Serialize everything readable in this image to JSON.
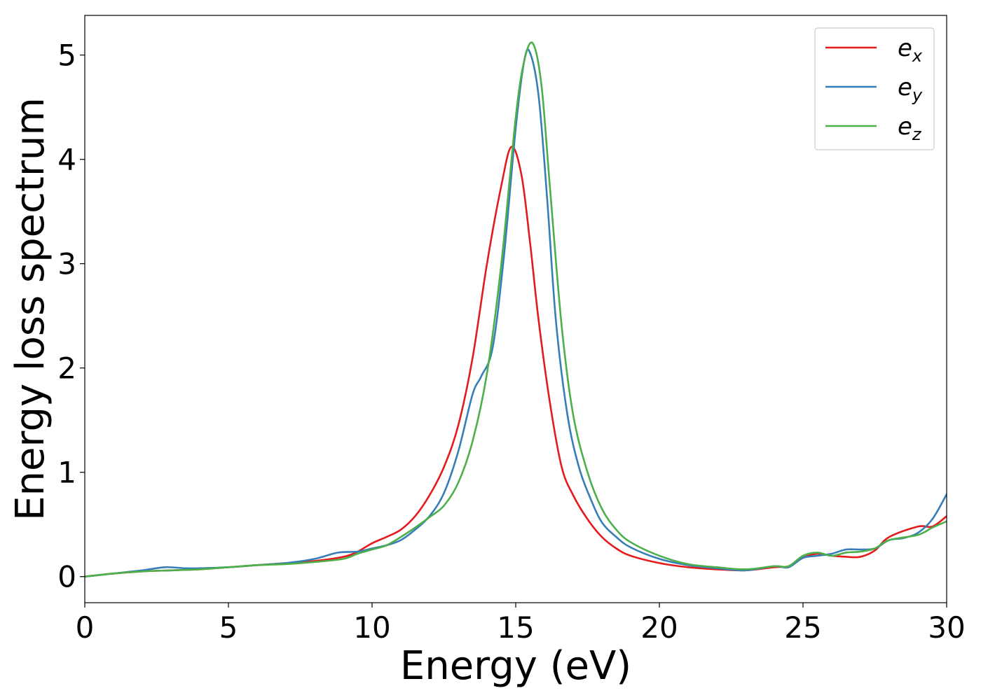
{
  "chart_data": {
    "type": "line",
    "title": "",
    "xlabel": "Energy (eV)",
    "ylabel": "Energy loss spectrum",
    "xlim": [
      0,
      30
    ],
    "ylim": [
      -0.25,
      5.38
    ],
    "xticks": [
      0,
      5,
      10,
      15,
      20,
      25,
      30
    ],
    "yticks": [
      0,
      1,
      2,
      3,
      4,
      5
    ],
    "xtick_labels": [
      "0",
      "5",
      "10",
      "15",
      "20",
      "25",
      "30"
    ],
    "ytick_labels": [
      "0",
      "1",
      "2",
      "3",
      "4",
      "5"
    ],
    "grid": false,
    "legend_position": "top-right",
    "series": [
      {
        "name": "e_x",
        "label_base": "e",
        "label_sub": "x",
        "color": "#e41a1c",
        "x": [
          0,
          1,
          2,
          3,
          4,
          5,
          6,
          7,
          8,
          9,
          9.5,
          10,
          10.5,
          11,
          11.5,
          12,
          12.5,
          13,
          13.5,
          14,
          14.5,
          14.85,
          15.2,
          15.5,
          15.8,
          16.2,
          16.6,
          17,
          17.5,
          18,
          18.5,
          19,
          20,
          21,
          22,
          23,
          24,
          24.5,
          25,
          25.5,
          26,
          26.5,
          27,
          27.5,
          28,
          29,
          29.5,
          30
        ],
        "y": [
          0,
          0.03,
          0.05,
          0.06,
          0.07,
          0.09,
          0.11,
          0.13,
          0.15,
          0.19,
          0.24,
          0.32,
          0.38,
          0.45,
          0.58,
          0.78,
          1.05,
          1.45,
          2.1,
          3.0,
          3.75,
          4.12,
          3.85,
          3.2,
          2.45,
          1.65,
          1.05,
          0.78,
          0.55,
          0.38,
          0.27,
          0.2,
          0.13,
          0.09,
          0.07,
          0.06,
          0.09,
          0.1,
          0.18,
          0.22,
          0.2,
          0.19,
          0.19,
          0.25,
          0.38,
          0.48,
          0.48,
          0.58
        ]
      },
      {
        "name": "e_y",
        "label_base": "e",
        "label_sub": "y",
        "color": "#377eb8",
        "x": [
          0,
          1,
          2,
          2.8,
          3.5,
          4,
          5,
          6,
          7,
          8,
          8.8,
          9.5,
          10,
          10.5,
          11,
          11.5,
          12,
          12.5,
          13,
          13.5,
          13.8,
          14.2,
          14.6,
          15,
          15.3,
          15.5,
          15.8,
          16.1,
          16.4,
          16.8,
          17.2,
          17.6,
          18,
          18.5,
          19,
          20,
          21,
          22,
          23,
          24,
          24.5,
          25,
          25.5,
          26,
          26.5,
          27,
          27.5,
          28,
          28.5,
          29,
          29.5,
          30
        ],
        "y": [
          0,
          0.03,
          0.06,
          0.09,
          0.08,
          0.08,
          0.09,
          0.11,
          0.13,
          0.17,
          0.23,
          0.24,
          0.27,
          0.3,
          0.35,
          0.45,
          0.58,
          0.8,
          1.2,
          1.75,
          1.92,
          2.2,
          3.1,
          4.3,
          4.95,
          5.02,
          4.6,
          3.6,
          2.45,
          1.55,
          1.05,
          0.75,
          0.52,
          0.38,
          0.28,
          0.17,
          0.11,
          0.08,
          0.06,
          0.1,
          0.09,
          0.18,
          0.2,
          0.22,
          0.26,
          0.26,
          0.27,
          0.35,
          0.37,
          0.42,
          0.55,
          0.79
        ]
      },
      {
        "name": "e_z",
        "label_base": "e",
        "label_sub": "z",
        "color": "#4daf4a",
        "x": [
          0,
          1,
          2,
          3,
          4,
          5,
          6,
          7,
          8,
          9,
          9.5,
          10,
          10.5,
          11,
          11.5,
          12,
          12.5,
          13,
          13.5,
          14,
          14.5,
          15,
          15.3,
          15.6,
          15.9,
          16.2,
          16.6,
          17,
          17.5,
          18,
          18.5,
          19,
          20,
          21,
          22,
          23,
          24,
          24.5,
          25,
          25.5,
          26,
          26.5,
          27,
          27.5,
          28,
          29,
          29.5,
          30
        ],
        "y": [
          0,
          0.03,
          0.05,
          0.06,
          0.07,
          0.09,
          0.11,
          0.12,
          0.14,
          0.17,
          0.22,
          0.26,
          0.3,
          0.38,
          0.47,
          0.57,
          0.68,
          0.9,
          1.3,
          1.95,
          3.0,
          4.4,
          4.95,
          5.11,
          4.7,
          3.7,
          2.4,
          1.55,
          1.0,
          0.65,
          0.45,
          0.33,
          0.2,
          0.12,
          0.09,
          0.07,
          0.1,
          0.1,
          0.2,
          0.23,
          0.2,
          0.23,
          0.24,
          0.27,
          0.35,
          0.4,
          0.47,
          0.53
        ]
      }
    ]
  }
}
